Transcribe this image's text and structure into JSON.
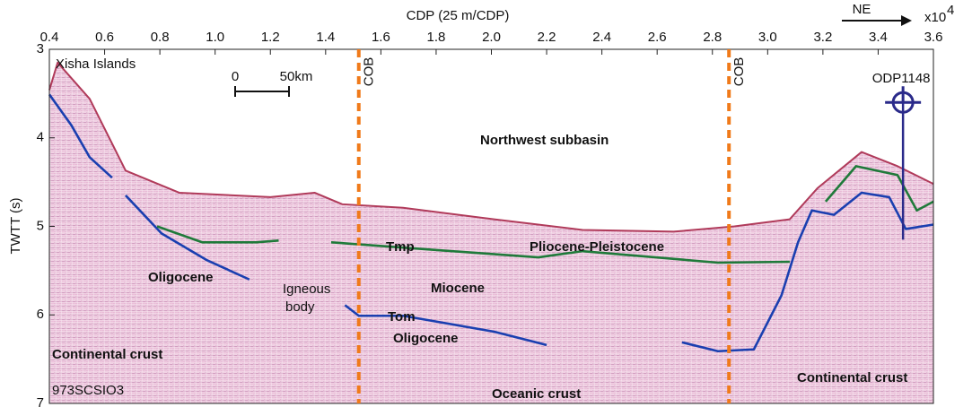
{
  "chart_data": {
    "type": "seismic",
    "x_label": "CDP (25 m/CDP)",
    "x_multiplier": {
      "base": "x10",
      "exponent": "4"
    },
    "y_label": "TWTT (s)",
    "xlim": [
      0.4,
      3.6
    ],
    "xticks": [
      0.4,
      0.6,
      0.8,
      {
        "value": 1,
        "label": "1.0"
      },
      1.2,
      1.4,
      1.6,
      1.8,
      {
        "value": 2,
        "label": "2.0"
      },
      2.2,
      2.4,
      2.6,
      2.8,
      {
        "value": 3,
        "label": "3.0"
      },
      3.2,
      3.4,
      3.6
    ],
    "ylim": [
      3,
      7
    ],
    "yticks": [
      3,
      4,
      5,
      6,
      7
    ],
    "y_inverted": true,
    "direction": "NE",
    "title": "Northwest subbasin",
    "scale_bar": [
      "0",
      "50km"
    ],
    "cob_lines": [
      {
        "x": 1.52,
        "label": "COB"
      },
      {
        "x": 2.86,
        "label": "COB"
      }
    ],
    "well": {
      "label": "ODP1148",
      "x": 3.49,
      "ylim": [
        3.6,
        5.15
      ]
    },
    "series": [
      {
        "color": "#b03a5a",
        "x": [
          0.4,
          0.43,
          0.546,
          0.676,
          0.87,
          1.2,
          1.36,
          1.46,
          1.68,
          2.01,
          2.33,
          2.66,
          2.88,
          3.08,
          3.18,
          3.34,
          3.47,
          3.6
        ],
        "values": [
          3.46,
          3.15,
          3.56,
          4.37,
          4.62,
          4.67,
          4.62,
          4.75,
          4.79,
          4.92,
          5.04,
          5.06,
          5.0,
          4.92,
          4.57,
          4.16,
          4.32,
          4.52
        ]
      },
      {
        "color": "#1a3fb0",
        "x": [
          0.4,
          0.48,
          0.546,
          0.627
        ],
        "values": [
          3.51,
          3.86,
          4.22,
          4.45
        ]
      },
      {
        "color": "#1a3fb0",
        "x": [
          0.676,
          0.806,
          0.969,
          1.124
        ],
        "values": [
          4.65,
          5.08,
          5.38,
          5.6
        ]
      },
      {
        "color": "#1f7a3a",
        "x": [
          0.79,
          0.953,
          1.148,
          1.23
        ],
        "values": [
          5.0,
          5.18,
          5.18,
          5.16
        ]
      },
      {
        "color": "#1f7a3a",
        "x": [
          1.42,
          1.68,
          2.17,
          2.33,
          2.82,
          3.08
        ],
        "values": [
          5.18,
          5.24,
          5.35,
          5.28,
          5.41,
          5.4
        ]
      },
      {
        "color": "#1a3fb0",
        "x": [
          1.47,
          1.52,
          1.68,
          2.01,
          2.2
        ],
        "values": [
          5.89,
          6.01,
          6.01,
          6.19,
          6.34
        ]
      },
      {
        "color": "#1a3fb0",
        "x": [
          2.69,
          2.82,
          2.95,
          3.05,
          3.11,
          3.16,
          3.24,
          3.34,
          3.44,
          3.5,
          3.6
        ],
        "values": [
          6.31,
          6.41,
          6.39,
          5.78,
          5.18,
          4.82,
          4.87,
          4.62,
          4.67,
          5.03,
          4.98
        ]
      },
      {
        "color": "#1f7a3a",
        "x": [
          3.21,
          3.32,
          3.47,
          3.54,
          3.6
        ],
        "values": [
          4.72,
          4.32,
          4.42,
          4.82,
          4.72
        ]
      }
    ],
    "annotations": [
      {
        "text": "Xisha Islands",
        "color": "#111111"
      },
      {
        "text": "Oligocene",
        "color": "#000000"
      },
      {
        "text": "Igneous",
        "color": "#111111"
      },
      {
        "text": "body",
        "color": "#111111"
      },
      {
        "text": "Tmp",
        "color": "#e0141e"
      },
      {
        "text": "Pliocene-Pleistocene",
        "color": "#000000"
      },
      {
        "text": "Miocene",
        "color": "#000000"
      },
      {
        "text": "Tom",
        "color": "#e0141e"
      },
      {
        "text": "Oligocene",
        "color": "#000000"
      },
      {
        "text": "Continental crust",
        "color": "#1a3fd0"
      },
      {
        "text": "Oceanic crust",
        "color": "#1a3fd0"
      },
      {
        "text": "Continental crust",
        "color": "#1a3fd0"
      },
      {
        "text": "973SCSIO3",
        "color": "#111111"
      }
    ]
  }
}
